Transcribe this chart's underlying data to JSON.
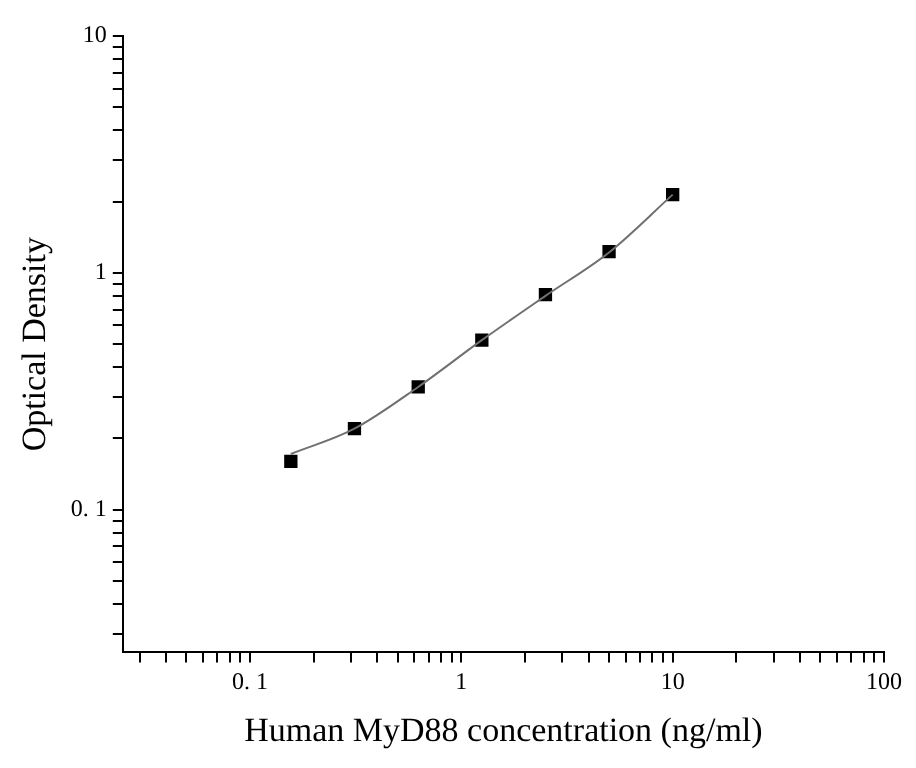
{
  "chart_data": {
    "type": "scatter",
    "xlabel": "Human MyD88 concentration (ng/ml)",
    "ylabel": "Optical Density",
    "log": "xy",
    "grid": false,
    "legend": false,
    "marker": "square",
    "xlim": [
      0.025,
      100
    ],
    "ylim": [
      0.025,
      10
    ],
    "xticks": [
      {
        "value": 0.03,
        "label": null
      },
      {
        "value": 0.04,
        "label": null
      },
      {
        "value": 0.05,
        "label": null
      },
      {
        "value": 0.06,
        "label": null
      },
      {
        "value": 0.07,
        "label": null
      },
      {
        "value": 0.08,
        "label": null
      },
      {
        "value": 0.09,
        "label": null
      },
      {
        "value": 0.1,
        "label": "0. 1"
      },
      {
        "value": 0.2,
        "label": null
      },
      {
        "value": 0.3,
        "label": null
      },
      {
        "value": 0.4,
        "label": null
      },
      {
        "value": 0.5,
        "label": null
      },
      {
        "value": 0.6,
        "label": null
      },
      {
        "value": 0.7,
        "label": null
      },
      {
        "value": 0.8,
        "label": null
      },
      {
        "value": 0.9,
        "label": null
      },
      1,
      {
        "value": 2,
        "label": null
      },
      {
        "value": 3,
        "label": null
      },
      {
        "value": 4,
        "label": null
      },
      {
        "value": 5,
        "label": null
      },
      {
        "value": 6,
        "label": null
      },
      {
        "value": 7,
        "label": null
      },
      {
        "value": 8,
        "label": null
      },
      {
        "value": 9,
        "label": null
      },
      10,
      {
        "value": 20,
        "label": null
      },
      {
        "value": 30,
        "label": null
      },
      {
        "value": 40,
        "label": null
      },
      {
        "value": 50,
        "label": null
      },
      {
        "value": 60,
        "label": null
      },
      {
        "value": 70,
        "label": null
      },
      {
        "value": 80,
        "label": null
      },
      {
        "value": 90,
        "label": null
      },
      100
    ],
    "yticks": [
      {
        "value": 0.03,
        "label": null
      },
      {
        "value": 0.04,
        "label": null
      },
      {
        "value": 0.05,
        "label": null
      },
      {
        "value": 0.06,
        "label": null
      },
      {
        "value": 0.07,
        "label": null
      },
      {
        "value": 0.08,
        "label": null
      },
      {
        "value": 0.09,
        "label": null
      },
      {
        "value": 0.1,
        "label": "0. 1"
      },
      {
        "value": 0.2,
        "label": null
      },
      {
        "value": 0.3,
        "label": null
      },
      {
        "value": 0.4,
        "label": null
      },
      {
        "value": 0.5,
        "label": null
      },
      {
        "value": 0.6,
        "label": null
      },
      {
        "value": 0.7,
        "label": null
      },
      {
        "value": 0.8,
        "label": null
      },
      {
        "value": 0.9,
        "label": null
      },
      1,
      {
        "value": 2,
        "label": null
      },
      {
        "value": 3,
        "label": null
      },
      {
        "value": 4,
        "label": null
      },
      {
        "value": 5,
        "label": null
      },
      {
        "value": 6,
        "label": null
      },
      {
        "value": 7,
        "label": null
      },
      {
        "value": 8,
        "label": null
      },
      {
        "value": 9,
        "label": null
      },
      10
    ],
    "series": [
      {
        "type": "line",
        "color": "#707070",
        "marker": "none",
        "x": [
          0.156,
          0.312,
          0.625,
          1.25,
          2.5,
          5,
          10
        ],
        "values": [
          0.172,
          0.22,
          0.33,
          0.52,
          0.8,
          1.22,
          2.14
        ]
      },
      {
        "color": "#000000",
        "x": [
          0.156,
          0.312,
          0.625,
          1.25,
          2.5,
          5,
          10
        ],
        "values": [
          0.16,
          0.22,
          0.33,
          0.52,
          0.81,
          1.23,
          2.14
        ]
      }
    ]
  }
}
